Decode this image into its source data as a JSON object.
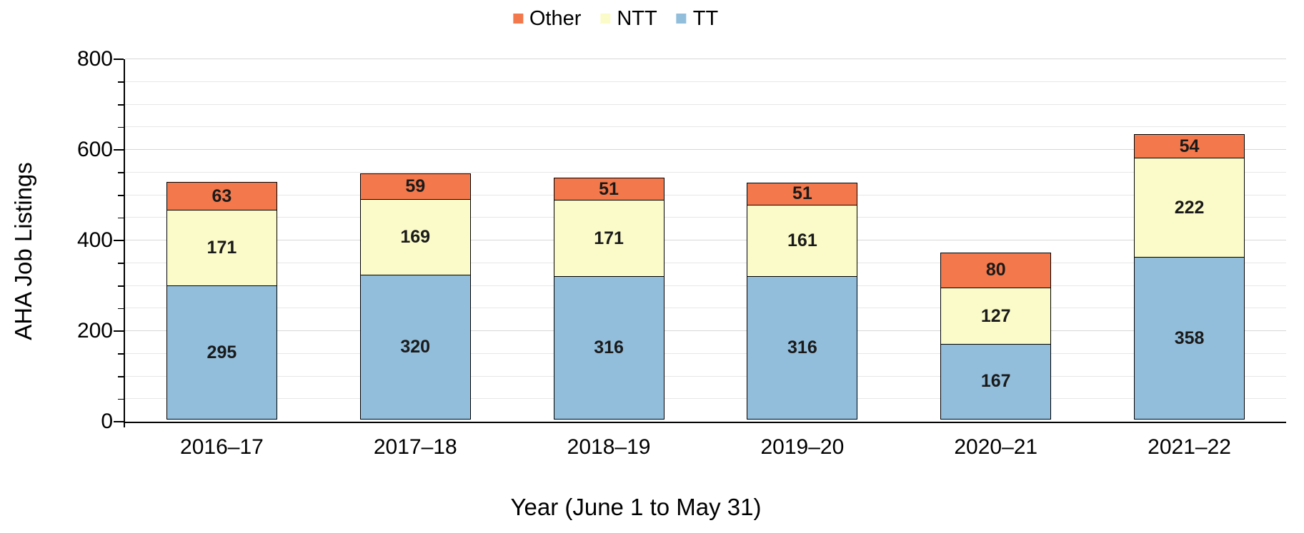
{
  "chart_data": {
    "type": "bar",
    "stacked": true,
    "xlabel": "Year (June 1 to May 31)",
    "ylabel": "AHA Job Listings",
    "categories": [
      "2016–17",
      "2017–18",
      "2018–19",
      "2019–20",
      "2020–21",
      "2021–22"
    ],
    "series": [
      {
        "name": "TT",
        "color": "#92BEDC",
        "values": [
          295,
          320,
          316,
          316,
          167,
          358
        ]
      },
      {
        "name": "NTT",
        "color": "#FBFBC9",
        "values": [
          171,
          169,
          171,
          161,
          127,
          222
        ]
      },
      {
        "name": "Other",
        "color": "#F3784B",
        "values": [
          63,
          59,
          51,
          51,
          80,
          54
        ]
      }
    ],
    "totals": [
      529,
      548,
      538,
      528,
      374,
      634
    ],
    "ylim": [
      0,
      800
    ],
    "yticks": [
      "0",
      "200",
      "400",
      "600",
      "800"
    ],
    "ytick_step": 200,
    "gridline_step": 50,
    "grid": true,
    "legend_position": "top",
    "legend_order": [
      "Other",
      "NTT",
      "TT"
    ],
    "bar_outline_color": "#000000",
    "value_label_color": "#1a1a1a"
  }
}
